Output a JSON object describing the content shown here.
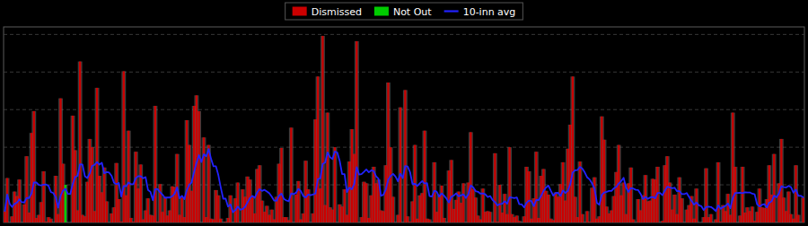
{
  "chart_data": {
    "type": "bar",
    "ylim": [
      0,
      260
    ],
    "yticks": [
      50,
      100,
      150,
      200,
      250
    ],
    "grid": true,
    "tick_labels": false,
    "legend": "top",
    "series": [
      {
        "name": "Dismissed",
        "color": "#cc0000",
        "values": [
          15,
          59,
          null,
          8,
          41,
          35,
          57,
          null,
          24,
          88,
          13,
          119,
          148,
          6,
          10,
          27,
          68,
          1,
          7,
          5,
          null,
          62,
          11,
          165,
          78,
          null,
          null,
          null,
          142,
          96,
          16,
          214,
          10,
          8,
          54,
          111,
          100,
          15,
          179,
          62,
          40,
          73,
          28,
          null,
          12,
          20,
          79,
          31,
          1,
          201,
          36,
          122,
          6,
          1,
          94,
          45,
          77,
          4,
          16,
          32,
          10,
          9,
          155,
          1,
          51,
          14,
          34,
          9,
          16,
          48,
          47,
          91,
          10,
          33,
          7,
          136,
          103,
          42,
          155,
          169,
          148,
          null,
          113,
          7,
          103,
          5,
          4,
          43,
          36,
          5,
          null,
          1,
          6,
          36,
          null,
          32,
          53,
          null,
          44,
          34,
          61,
          57,
          35,
          12,
          71,
          76,
          29,
          14,
          22,
          10,
          17,
          4,
          34,
          78,
          99,
          7,
          7,
          3,
          126,
          null,
          37,
          55,
          4,
          12,
          82,
          44,
          null,
          12,
          137,
          194,
          45,
          248,
          23,
          146,
          20,
          17,
          100,
          null,
          24,
          21,
          44,
          10,
          81,
          124,
          91,
          241,
          null,
          7,
          54,
          52,
          6,
          36,
          74,
          52,
          57,
          16,
          15,
          76,
          186,
          100,
          34,
          null,
          10,
          153,
          null,
          176,
          8,
          1,
          28,
          103,
          5,
          36,
          39,
          122,
          5,
          4,
          null,
          80,
          14,
          37,
          49,
          6,
          null,
          69,
          83,
          18,
          30,
          41,
          26,
          52,
          null,
          53,
          120,
          44,
          33,
          9,
          4,
          45,
          14,
          15,
          14,
          null,
          92,
          1,
          50,
          13,
          38,
          11,
          100,
          11,
          7,
          9,
          2,
          null,
          8,
          74,
          68,
          5,
          32,
          94,
          6,
          62,
          71,
          42,
          37,
          5,
          3,
          40,
          34,
          51,
          80,
          29,
          98,
          130,
          194,
          34,
          7,
          81,
          11,
          null,
          15,
          1,
          46,
          60,
          5,
          8,
          141,
          110,
          21,
          12,
          16,
          35,
          67,
          103,
          36,
          53,
          11,
          52,
          73,
          4,
          null,
          31,
          16,
          36,
          63,
          28,
          29,
          58,
          57,
          74,
          null,
          2,
          76,
          88,
          53,
          17,
          37,
          11,
          60,
          32,
          null,
          17,
          23,
          35,
          5,
          45,
          null,
          null,
          7,
          72,
          7,
          11,
          null,
          4,
          80,
          1,
          23,
          15,
          38,
          10,
          146,
          74,
          null,
          9,
          74,
          13,
          20,
          15,
          21,
          2,
          14,
          45,
          20,
          19,
          31,
          76,
          37,
          91,
          null,
          52,
          111,
          33,
          15,
          41,
          11,
          5,
          76,
          10,
          null,
          33
        ]
      },
      {
        "name": "Not Out",
        "color": "#00cc00",
        "values": [
          null,
          null,
          0,
          null,
          null,
          null,
          null,
          0,
          null,
          null,
          null,
          null,
          null,
          null,
          null,
          null,
          null,
          null,
          null,
          null,
          0,
          null,
          null,
          null,
          null,
          50,
          0,
          0,
          null,
          null,
          null,
          null,
          null,
          null,
          null,
          null,
          null,
          null,
          null,
          null,
          null,
          null,
          null,
          0,
          null,
          null,
          null,
          null,
          null,
          null,
          null,
          null,
          null,
          null,
          null,
          null,
          null,
          null,
          null,
          null,
          null,
          null,
          null,
          null,
          null,
          null,
          null,
          null,
          null,
          null,
          null,
          null,
          null,
          null,
          null,
          null,
          null,
          null,
          null,
          null,
          null,
          0,
          null,
          null,
          null,
          null,
          null,
          null,
          null,
          null,
          0,
          null,
          null,
          null,
          0,
          null,
          null,
          0,
          null,
          null,
          null,
          null,
          null,
          null,
          null,
          null,
          null,
          null,
          null,
          null,
          null,
          null,
          null,
          null,
          null,
          null,
          null,
          null,
          null,
          0,
          null,
          null,
          null,
          null,
          null,
          null,
          0,
          null,
          null,
          null,
          null,
          null,
          null,
          null,
          null,
          null,
          null,
          0,
          null,
          null,
          null,
          null,
          null,
          null,
          null,
          null,
          0,
          null,
          null,
          null,
          null,
          null,
          null,
          null,
          null,
          null,
          null,
          null,
          null,
          null,
          null,
          0,
          null,
          null,
          0,
          null,
          null,
          null,
          null,
          null,
          null,
          null,
          null,
          null,
          null,
          null,
          0,
          null,
          null,
          null,
          null,
          null,
          0,
          null,
          null,
          null,
          null,
          null,
          null,
          null,
          0,
          null,
          null,
          null,
          null,
          null,
          null,
          null,
          null,
          null,
          null,
          0,
          null,
          null,
          null,
          null,
          null,
          null,
          null,
          null,
          null,
          null,
          null,
          0,
          null,
          null,
          null,
          null,
          null,
          null,
          null,
          null,
          null,
          null,
          null,
          null,
          null,
          null,
          null,
          null,
          null,
          null,
          null,
          null,
          null,
          null,
          null,
          null,
          null,
          0,
          null,
          null,
          null,
          null,
          null,
          null,
          null,
          null,
          null,
          null,
          null,
          null,
          null,
          null,
          null,
          null,
          null,
          null,
          null,
          null,
          0,
          null,
          null,
          null,
          null,
          null,
          null,
          null,
          null,
          null,
          0,
          null,
          null,
          null,
          null,
          null,
          null,
          null,
          null,
          null,
          0,
          null,
          null,
          null,
          null,
          null,
          0,
          0,
          null,
          null,
          null,
          null,
          0,
          null,
          null,
          null,
          null,
          null,
          null,
          null,
          null,
          null,
          0,
          null,
          null,
          null,
          null,
          null,
          null,
          null,
          null,
          null,
          null,
          null,
          null,
          null,
          null,
          null,
          0,
          null,
          null,
          null,
          null,
          null,
          null,
          null,
          null,
          null,
          0,
          null
        ]
      },
      {
        "name": "10-inn avg",
        "type": "line",
        "color": "#2222ff",
        "values": [
          15,
          37,
          24.666666666666668,
          20.5,
          24.6,
          26.333333333333332,
          30.714285714285715,
          26.875,
          26.555555555555557,
          32.7,
          32.5,
          38.5,
          53.3,
          53.1,
          50,
          49.2,
          50.3,
          50.4,
          48.7,
          40.4,
          39.1,
          33.4,
          19.7,
          35.6,
          42.4,
          44.7,
          37.9,
          37.8,
          51.3,
          60.4,
          62,
          77.2,
          77.1,
          61.4,
          59,
          65.1,
          75.1,
          76.6,
          80.3,
          76.9,
          79.3,
          65.2,
          67,
          66.2,
          62,
          52.9,
          50.8,
          52.4,
          34.6,
          48.5,
          48.1,
          53,
          50.8,
          50.9,
          59.1,
          61.6,
          61.4,
          58.7,
          60.2,
          43.3,
          40.7,
          29.4,
          44.3,
          44.3,
          40,
          36.9,
          32.6,
          33.1,
          33.1,
          34.7,
          38.4,
          46.6,
          32.1,
          35.3,
          30.9,
          43.1,
          50,
          53.3,
          67.2,
          79.3,
          89.4,
          80.3,
          90.6,
          88,
          97.6,
          84.5,
          74.6,
          74.7,
          62.8,
          46.4,
          31.6,
          31.7,
          21,
          23.9,
          13.6,
          16.3,
          21.2,
          16.9,
          17.7,
          20.6,
          26.7,
          32.3,
          35.2,
          32.8,
          39.9,
          44.3,
          41.9,
          43.3,
          41.1,
          38.7,
          34.3,
          29,
          28.9,
          35.5,
          38.3,
          31.4,
          29.2,
          28.1,
          38.5,
          37.5,
          39.5,
          44.6,
          41.6,
          35,
          33.3,
          37,
          36.3,
          37.2,
          38.3,
          57.7,
          58.5,
          77.8,
          79.7,
          93.1,
          86.9,
          84.2,
          94.2,
          93,
          81.7,
          64.4,
          64.3,
          40.5,
          46.3,
          44.1,
          51.2,
          73.6,
          63.6,
          64.3,
          67.3,
          70.4,
          66.6,
          69.2,
          68.5,
          61.3,
          57.9,
          35.4,
          36.9,
          43.8,
          57,
          61.8,
          64.6,
          61,
          54.6,
          64.7,
          59,
          75,
          74.3,
          66.8,
          51,
          51.3,
          48.4,
          52,
          54.9,
          51.8,
          52.3,
          35.1,
          34.3,
          42.2,
          40.8,
          34.2,
          38.6,
          35.6,
          31.7,
          26.4,
          34.2,
          35.6,
          38.6,
          34.7,
          35.9,
          37.4,
          32.5,
          37.2,
          49.2,
          46.7,
          41.7,
          40.8,
          38.2,
          38.6,
          37.4,
          33.7,
          35.1,
          29.8,
          27,
          22.7,
          24.4,
          24.8,
          28.2,
          24.8,
          33.4,
          33,
          32.3,
          33.2,
          24.2,
          24.1,
          19.9,
          26,
          29,
          28.4,
          21.6,
          29.9,
          29.8,
          35.1,
          42,
          46.2,
          49.1,
          42.2,
          35.7,
          39.2,
          39.4,
          35.1,
          42.5,
          39.2,
          41.9,
          50.7,
          66.4,
          69.3,
          69.7,
          73.8,
          71.5,
          66.4,
          59.9,
          57.1,
          51.9,
          44.9,
          26,
          23.4,
          36.8,
          39.7,
          40.7,
          41.9,
          42,
          45.4,
          47.5,
          51.8,
          54.9,
          59.4,
          46.4,
          40.6,
          45.8,
          45,
          43.4,
          43,
          37.9,
          31.2,
          33.9,
          31.4,
          33.2,
          33.8,
          32.2,
          39.2,
          39.2,
          36.3,
          42.3,
          47.5,
          46.5,
          45.4,
          46.2,
          41.5,
          41.8,
          37.6,
          37.6,
          39.1,
          33.8,
          28.5,
          23.7,
          26.5,
          22.8,
          21.7,
          16.4,
          20.4,
          21.1,
          20.5,
          18.2,
          15.1,
          22.6,
          18.2,
          20.5,
          22,
          25.1,
          18.9,
          32.8,
          39.1,
          39.1,
          39.6,
          39,
          40.2,
          39.9,
          39.9,
          38.2,
          37.4,
          24.2,
          21.3,
          23.3,
          24.3,
          20,
          26.3,
          28,
          35.6,
          33.5,
          38.5,
          48.2,
          47,
          46.5,
          48.7,
          46.7,
          39.6,
          43.5,
          35.4,
          35.4,
          33.5
        ]
      }
    ]
  }
}
